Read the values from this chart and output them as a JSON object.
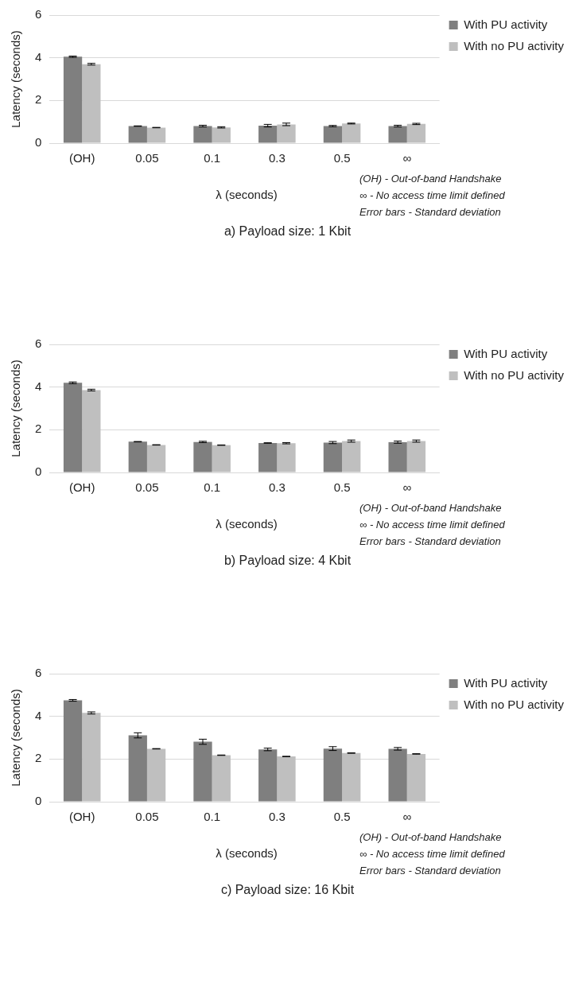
{
  "chart_data": [
    {
      "type": "bar",
      "title": "a) Payload size: 1 Kbit",
      "xlabel": "λ (seconds)",
      "ylabel": "Latency (seconds)",
      "categories": [
        "(OH)",
        "0.05",
        "0.1",
        "0.3",
        "0.5",
        "∞"
      ],
      "ylim": [
        0,
        6
      ],
      "yticks": [
        0,
        2,
        4,
        6
      ],
      "grid": "y",
      "legend": "right",
      "annotations": [
        "(OH) - Out-of-band Handshake",
        "∞ - No access time limit defined",
        "Error bars - Standard deviation"
      ],
      "series": [
        {
          "name": "With PU activity",
          "color": "#7f7f7f",
          "values": [
            4.05,
            0.8,
            0.8,
            0.82,
            0.8,
            0.8
          ],
          "errors": [
            0.03,
            0.01,
            0.04,
            0.06,
            0.03,
            0.04
          ]
        },
        {
          "name": "With no PU activity",
          "color": "#bfbfbf",
          "values": [
            3.7,
            0.73,
            0.74,
            0.88,
            0.92,
            0.9
          ],
          "errors": [
            0.04,
            0.01,
            0.03,
            0.06,
            0.02,
            0.03
          ]
        }
      ]
    },
    {
      "type": "bar",
      "title": "b) Payload size: 4 Kbit",
      "xlabel": "λ (seconds)",
      "ylabel": "Latency (seconds)",
      "categories": [
        "(OH)",
        "0.05",
        "0.1",
        "0.3",
        "0.5",
        "∞"
      ],
      "ylim": [
        0,
        6
      ],
      "yticks": [
        0,
        2,
        4,
        6
      ],
      "grid": "y",
      "legend": "right",
      "annotations": [
        "(OH) - Out-of-band Handshake",
        "∞ - No access time limit defined",
        "Error bars - Standard deviation"
      ],
      "series": [
        {
          "name": "With PU activity",
          "color": "#7f7f7f",
          "values": [
            4.2,
            1.44,
            1.43,
            1.38,
            1.4,
            1.42
          ],
          "errors": [
            0.04,
            0.01,
            0.03,
            0.01,
            0.05,
            0.05
          ]
        },
        {
          "name": "With no PU activity",
          "color": "#bfbfbf",
          "values": [
            3.86,
            1.29,
            1.28,
            1.37,
            1.47,
            1.47
          ],
          "errors": [
            0.04,
            0.01,
            0.01,
            0.03,
            0.05,
            0.05
          ]
        }
      ]
    },
    {
      "type": "bar",
      "title": "c) Payload size: 16 Kbit",
      "xlabel": "λ (seconds)",
      "ylabel": "Latency (seconds)",
      "categories": [
        "(OH)",
        "0.05",
        "0.1",
        "0.3",
        "0.5",
        "∞"
      ],
      "ylim": [
        0,
        6
      ],
      "yticks": [
        0,
        2,
        4,
        6
      ],
      "grid": "y",
      "legend": "right",
      "annotations": [
        "(OH) - Out-of-band Handshake",
        "∞ - No access time limit defined",
        "Error bars - Standard deviation"
      ],
      "series": [
        {
          "name": "With PU activity",
          "color": "#7f7f7f",
          "values": [
            4.75,
            3.11,
            2.81,
            2.45,
            2.49,
            2.48
          ],
          "errors": [
            0.04,
            0.12,
            0.12,
            0.06,
            0.09,
            0.06
          ]
        },
        {
          "name": "With no PU activity",
          "color": "#bfbfbf",
          "values": [
            4.16,
            2.48,
            2.18,
            2.12,
            2.28,
            2.24
          ],
          "errors": [
            0.05,
            0.01,
            0.01,
            0.01,
            0.01,
            0.01
          ]
        }
      ]
    }
  ]
}
